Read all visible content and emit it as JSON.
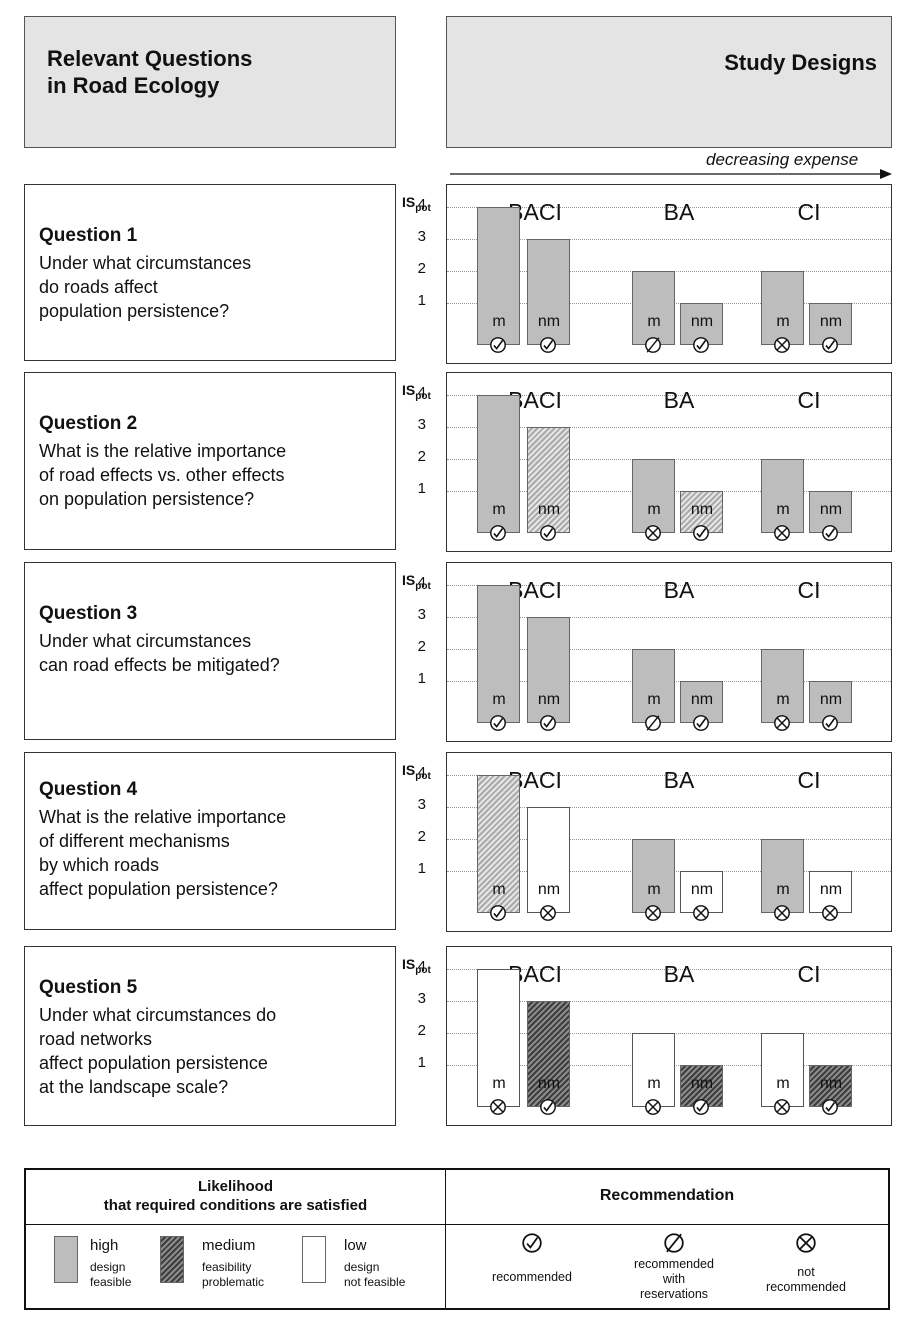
{
  "header": {
    "left_title": "Relevant Questions\nin Road Ecology",
    "right_title": "Study Designs",
    "arrow_label": "decreasing expense"
  },
  "axis_label_main": "IS",
  "axis_label_sub": "pot",
  "y_ticks": [
    "1",
    "2",
    "3",
    "4"
  ],
  "designs": [
    "BACI",
    "BA",
    "CI"
  ],
  "bar_labels": [
    "m",
    "nm"
  ],
  "questions": [
    {
      "number": "Question 1",
      "text": "Under what circumstances\ndo roads affect\npopulation persistence?"
    },
    {
      "number": "Question 2",
      "text": "What is the relative importance\nof road effects vs. other effects\non population persistence?"
    },
    {
      "number": "Question 3",
      "text": "Under what circumstances\ncan road effects be mitigated?"
    },
    {
      "number": "Question 4",
      "text": "What is the relative importance\nof different mechanisms\nby which roads\naffect population persistence?"
    },
    {
      "number": "Question 5",
      "text": "Under what circumstances do\nroad networks\naffect population persistence\nat the landscape scale?"
    }
  ],
  "chart_data": [
    {
      "type": "bar",
      "categories": [
        "BACI m",
        "BACI nm",
        "BA m",
        "BA nm",
        "CI m",
        "CI nm"
      ],
      "values": [
        4,
        3,
        2,
        1,
        2,
        1
      ],
      "likelihood": [
        "high",
        "high",
        "high",
        "high",
        "high",
        "high"
      ],
      "recommendation": [
        "recommended",
        "recommended",
        "reservations",
        "recommended",
        "not",
        "recommended"
      ],
      "ylim": [
        0,
        4
      ]
    },
    {
      "type": "bar",
      "categories": [
        "BACI m",
        "BACI nm",
        "BA m",
        "BA nm",
        "CI m",
        "CI nm"
      ],
      "values": [
        4,
        3,
        2,
        1,
        2,
        1
      ],
      "likelihood": [
        "high",
        "medium-light",
        "high",
        "medium-light",
        "high",
        "high"
      ],
      "recommendation": [
        "recommended",
        "recommended",
        "not",
        "recommended",
        "not",
        "recommended"
      ],
      "ylim": [
        0,
        4
      ]
    },
    {
      "type": "bar",
      "categories": [
        "BACI m",
        "BACI nm",
        "BA m",
        "BA nm",
        "CI m",
        "CI nm"
      ],
      "values": [
        4,
        3,
        2,
        1,
        2,
        1
      ],
      "likelihood": [
        "high",
        "high",
        "high",
        "high",
        "high",
        "high"
      ],
      "recommendation": [
        "recommended",
        "recommended",
        "reservations",
        "recommended",
        "not",
        "recommended"
      ],
      "ylim": [
        0,
        4
      ]
    },
    {
      "type": "bar",
      "categories": [
        "BACI m",
        "BACI nm",
        "BA m",
        "BA nm",
        "CI m",
        "CI nm"
      ],
      "values": [
        4,
        3,
        2,
        1,
        2,
        1
      ],
      "likelihood": [
        "medium-light",
        "low",
        "high",
        "low",
        "high",
        "low"
      ],
      "recommendation": [
        "recommended",
        "not",
        "not",
        "not",
        "not",
        "not"
      ],
      "ylim": [
        0,
        4
      ]
    },
    {
      "type": "bar",
      "categories": [
        "BACI m",
        "BACI nm",
        "BA m",
        "BA nm",
        "CI m",
        "CI nm"
      ],
      "values": [
        4,
        3,
        2,
        1,
        2,
        1
      ],
      "likelihood": [
        "low",
        "medium-dark",
        "low",
        "medium-dark",
        "low",
        "medium-dark"
      ],
      "recommendation": [
        "not",
        "recommended",
        "not",
        "recommended",
        "not",
        "recommended"
      ],
      "ylim": [
        0,
        4
      ]
    }
  ],
  "legend": {
    "likelihood_title": "Likelihood\nthat required conditions are satisfied",
    "recommendation_title": "Recommendation",
    "items": [
      {
        "main": "high",
        "sub": "design\nfeasible"
      },
      {
        "main": "medium",
        "sub": "feasibility\nproblematic"
      },
      {
        "main": "low",
        "sub": "design\nnot feasible"
      }
    ],
    "recs": [
      "recommended",
      "recommended\nwith\nreservations",
      "not\nrecommended"
    ]
  },
  "colors": {
    "high": "#bdbdbd",
    "low": "#ffffff",
    "border": "#333333"
  }
}
